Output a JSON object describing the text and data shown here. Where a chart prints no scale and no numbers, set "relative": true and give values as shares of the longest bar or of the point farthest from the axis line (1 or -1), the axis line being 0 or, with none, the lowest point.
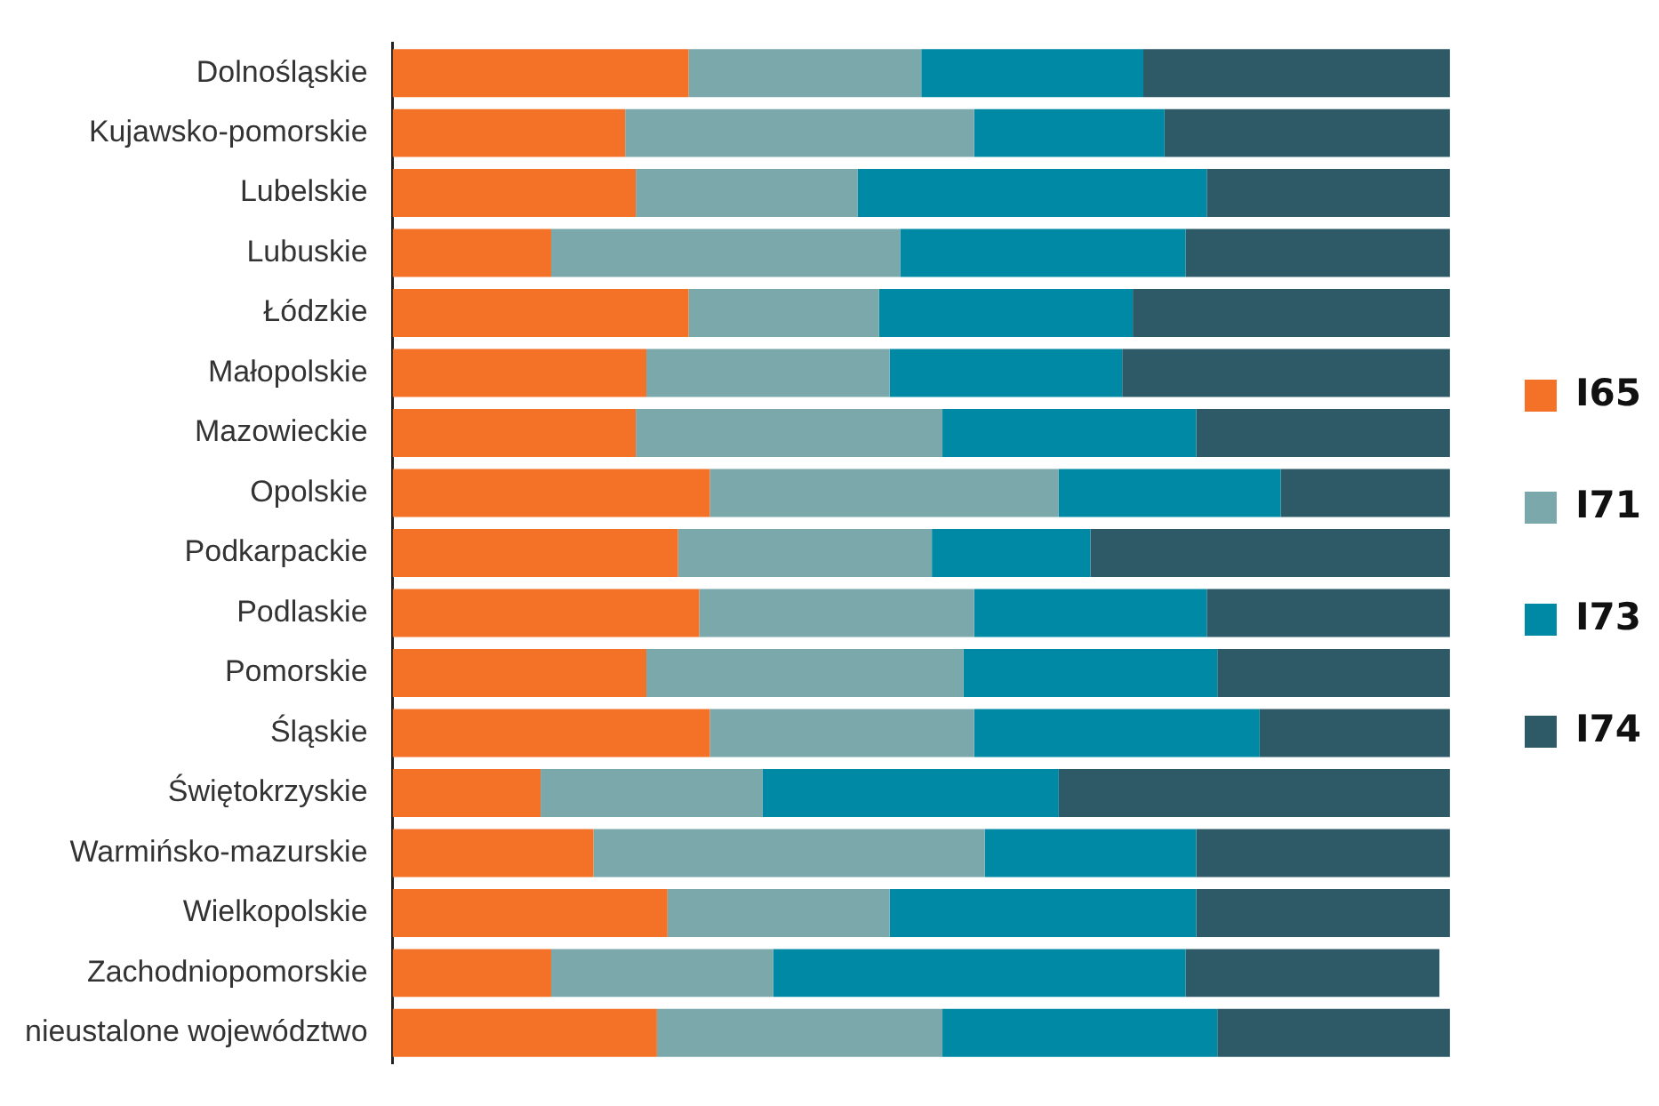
{
  "chart_data": {
    "type": "bar",
    "orientation": "horizontal",
    "stacked": true,
    "relative": true,
    "grid": false,
    "legend": "right",
    "categories": [
      "Dolnośląskie",
      "Kujawsko-pomorskie",
      "Lubelskie",
      "Lubuskie",
      "Łódzkie",
      "Małopolskie",
      "Mazowieckie",
      "Opolskie",
      "Podkarpackie",
      "Podlaskie",
      "Pomorskie",
      "Śląskie",
      "Świętokrzyskie",
      "Warmińsko-mazurskie",
      "Wielkopolskie",
      "Zachodniopomorskie",
      "nieustalone województwo"
    ],
    "series": [
      {
        "name": "I65",
        "color": "#f47228",
        "values": [
          0.28,
          0.22,
          0.23,
          0.15,
          0.28,
          0.24,
          0.23,
          0.3,
          0.27,
          0.29,
          0.24,
          0.3,
          0.14,
          0.19,
          0.26,
          0.15,
          0.25
        ]
      },
      {
        "name": "I71",
        "color": "#7aa8ab",
        "values": [
          0.22,
          0.33,
          0.21,
          0.33,
          0.18,
          0.23,
          0.29,
          0.33,
          0.24,
          0.26,
          0.3,
          0.25,
          0.21,
          0.37,
          0.21,
          0.21,
          0.27
        ]
      },
      {
        "name": "I73",
        "color": "#0089a5",
        "values": [
          0.21,
          0.18,
          0.33,
          0.27,
          0.24,
          0.22,
          0.24,
          0.21,
          0.15,
          0.22,
          0.24,
          0.27,
          0.28,
          0.2,
          0.29,
          0.39,
          0.26
        ]
      },
      {
        "name": "I74",
        "color": "#2e5a68",
        "values": [
          0.29,
          0.27,
          0.23,
          0.25,
          0.3,
          0.31,
          0.24,
          0.16,
          0.34,
          0.23,
          0.22,
          0.18,
          0.37,
          0.24,
          0.24,
          0.24,
          0.22
        ]
      }
    ]
  }
}
